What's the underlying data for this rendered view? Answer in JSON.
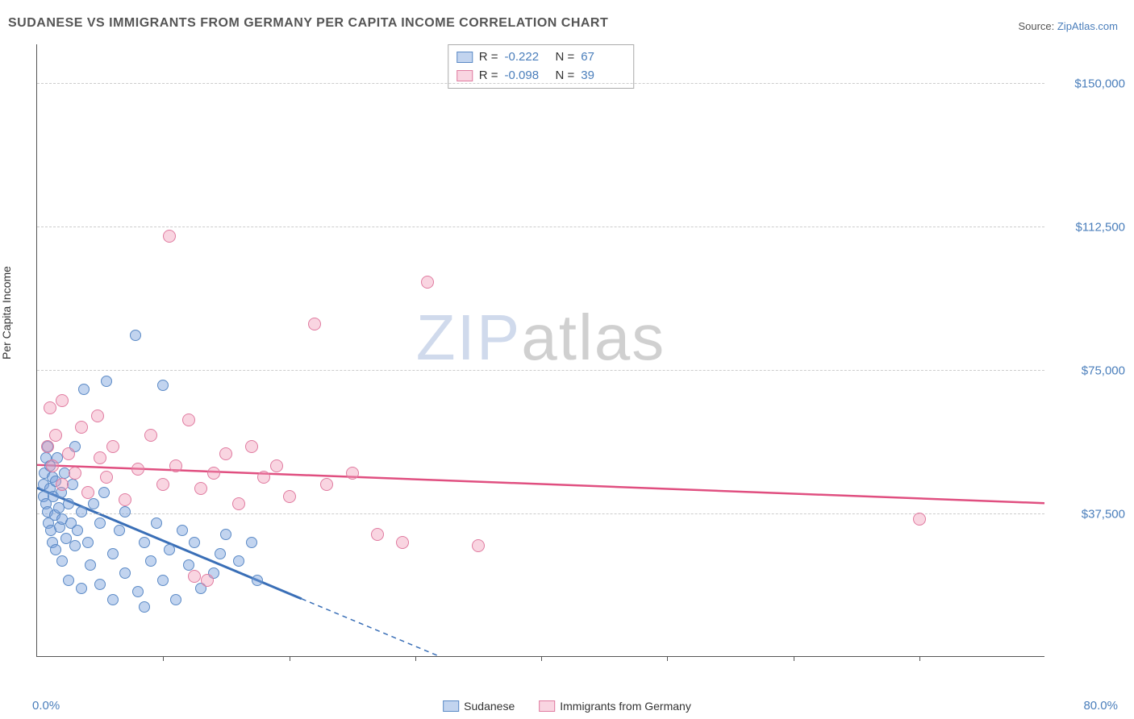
{
  "title": "SUDANESE VS IMMIGRANTS FROM GERMANY PER CAPITA INCOME CORRELATION CHART",
  "source_label": "Source: ",
  "source_name": "ZipAtlas.com",
  "y_axis_label": "Per Capita Income",
  "x_start": "0.0%",
  "x_end": "80.0%",
  "watermark_a": "ZIP",
  "watermark_b": "atlas",
  "chart": {
    "type": "scatter",
    "xlim": [
      0,
      80
    ],
    "ylim": [
      0,
      160000
    ],
    "y_ticks": [
      37500,
      75000,
      112500,
      150000
    ],
    "y_tick_labels": [
      "$37,500",
      "$75,000",
      "$112,500",
      "$150,000"
    ],
    "x_tick_positions": [
      10,
      20,
      30,
      40,
      50,
      60,
      70
    ],
    "grid_color": "#cccccc",
    "background_color": "#ffffff",
    "series": [
      {
        "name": "Sudanese",
        "fill": "rgba(120,160,220,0.45)",
        "stroke": "#5b8ac6",
        "marker_radius": 7,
        "R_label": "R =",
        "R": "-0.222",
        "N_label": "N =",
        "N": "67",
        "trend": {
          "x1": 0,
          "y1": 44000,
          "x2": 21,
          "y2": 15000,
          "x2_ext": 45,
          "y2_ext": -18000,
          "color": "#3a6fb7",
          "width": 3
        },
        "points": [
          [
            0.5,
            45000
          ],
          [
            0.5,
            42000
          ],
          [
            0.6,
            48000
          ],
          [
            0.7,
            40000
          ],
          [
            0.7,
            52000
          ],
          [
            0.8,
            38000
          ],
          [
            0.8,
            55000
          ],
          [
            0.9,
            35000
          ],
          [
            1.0,
            44000
          ],
          [
            1.0,
            50000
          ],
          [
            1.1,
            33000
          ],
          [
            1.2,
            47000
          ],
          [
            1.2,
            30000
          ],
          [
            1.3,
            42000
          ],
          [
            1.4,
            37000
          ],
          [
            1.5,
            28000
          ],
          [
            1.5,
            46000
          ],
          [
            1.6,
            52000
          ],
          [
            1.7,
            39000
          ],
          [
            1.8,
            34000
          ],
          [
            1.9,
            43000
          ],
          [
            2.0,
            25000
          ],
          [
            2.0,
            36000
          ],
          [
            2.2,
            48000
          ],
          [
            2.3,
            31000
          ],
          [
            2.5,
            40000
          ],
          [
            2.5,
            20000
          ],
          [
            2.7,
            35000
          ],
          [
            2.8,
            45000
          ],
          [
            3.0,
            55000
          ],
          [
            3.0,
            29000
          ],
          [
            3.2,
            33000
          ],
          [
            3.5,
            38000
          ],
          [
            3.5,
            18000
          ],
          [
            3.7,
            70000
          ],
          [
            4.0,
            30000
          ],
          [
            4.2,
            24000
          ],
          [
            4.5,
            40000
          ],
          [
            5.0,
            35000
          ],
          [
            5.0,
            19000
          ],
          [
            5.3,
            43000
          ],
          [
            5.5,
            72000
          ],
          [
            6.0,
            27000
          ],
          [
            6.0,
            15000
          ],
          [
            6.5,
            33000
          ],
          [
            7.0,
            22000
          ],
          [
            7.0,
            38000
          ],
          [
            7.8,
            84000
          ],
          [
            8.0,
            17000
          ],
          [
            8.5,
            30000
          ],
          [
            8.5,
            13000
          ],
          [
            9.0,
            25000
          ],
          [
            9.5,
            35000
          ],
          [
            10.0,
            20000
          ],
          [
            10.0,
            71000
          ],
          [
            10.5,
            28000
          ],
          [
            11.0,
            15000
          ],
          [
            11.5,
            33000
          ],
          [
            12.0,
            24000
          ],
          [
            12.5,
            30000
          ],
          [
            13.0,
            18000
          ],
          [
            14.0,
            22000
          ],
          [
            14.5,
            27000
          ],
          [
            15.0,
            32000
          ],
          [
            16.0,
            25000
          ],
          [
            17.0,
            30000
          ],
          [
            17.5,
            20000
          ]
        ]
      },
      {
        "name": "Immigrants from Germany",
        "fill": "rgba(240,150,180,0.4)",
        "stroke": "#e07ba0",
        "marker_radius": 8,
        "R_label": "R =",
        "R": "-0.098",
        "N_label": "N =",
        "N": "39",
        "trend": {
          "x1": 0,
          "y1": 50000,
          "x2": 80,
          "y2": 40000,
          "color": "#e04f80",
          "width": 2.5
        },
        "points": [
          [
            0.8,
            55000
          ],
          [
            1.0,
            65000
          ],
          [
            1.2,
            50000
          ],
          [
            1.5,
            58000
          ],
          [
            2.0,
            67000
          ],
          [
            2.0,
            45000
          ],
          [
            2.5,
            53000
          ],
          [
            3.0,
            48000
          ],
          [
            3.5,
            60000
          ],
          [
            4.0,
            43000
          ],
          [
            4.8,
            63000
          ],
          [
            5.0,
            52000
          ],
          [
            5.5,
            47000
          ],
          [
            6.0,
            55000
          ],
          [
            7.0,
            41000
          ],
          [
            8.0,
            49000
          ],
          [
            9.0,
            58000
          ],
          [
            10.0,
            45000
          ],
          [
            10.5,
            110000
          ],
          [
            11.0,
            50000
          ],
          [
            12.0,
            62000
          ],
          [
            12.5,
            21000
          ],
          [
            13.0,
            44000
          ],
          [
            13.5,
            20000
          ],
          [
            14.0,
            48000
          ],
          [
            15.0,
            53000
          ],
          [
            16.0,
            40000
          ],
          [
            17.0,
            55000
          ],
          [
            18.0,
            47000
          ],
          [
            19.0,
            50000
          ],
          [
            20.0,
            42000
          ],
          [
            22.0,
            87000
          ],
          [
            23.0,
            45000
          ],
          [
            25.0,
            48000
          ],
          [
            27.0,
            32000
          ],
          [
            29.0,
            30000
          ],
          [
            31.0,
            98000
          ],
          [
            35.0,
            29000
          ],
          [
            70.0,
            36000
          ]
        ]
      }
    ]
  },
  "legend": {
    "items": [
      {
        "label": "Sudanese",
        "fill": "rgba(120,160,220,0.45)",
        "stroke": "#5b8ac6"
      },
      {
        "label": "Immigrants from Germany",
        "fill": "rgba(240,150,180,0.4)",
        "stroke": "#e07ba0"
      }
    ]
  }
}
